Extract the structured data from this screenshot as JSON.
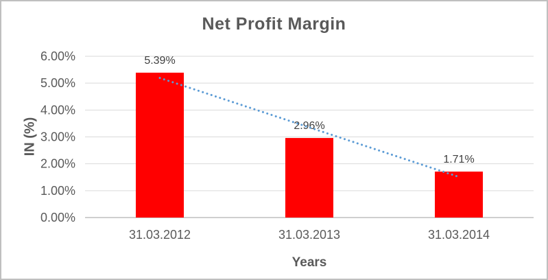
{
  "chart_data": {
    "type": "bar",
    "title": "Net Profit Margin",
    "xlabel": "Years",
    "ylabel": "IN (%)",
    "categories": [
      "31.03.2012",
      "31.03.2013",
      "31.03.2014"
    ],
    "values": [
      5.39,
      2.96,
      1.71
    ],
    "data_labels": [
      "5.39%",
      "2.96%",
      "1.71%"
    ],
    "ylim": [
      0,
      6
    ],
    "ytick_labels": [
      "0.00%",
      "1.00%",
      "2.00%",
      "3.00%",
      "4.00%",
      "5.00%",
      "6.00%"
    ],
    "grid": true,
    "legend": false,
    "trendline": {
      "type": "linear",
      "style": "dotted"
    },
    "colors": {
      "bar": "#ff0000",
      "trendline": "#5b9bd5",
      "gridline": "#d9d9d9",
      "axis_line": "#bfbfbf",
      "title_text": "#595959",
      "axis_text": "#595959",
      "data_label_text": "#404040"
    }
  }
}
